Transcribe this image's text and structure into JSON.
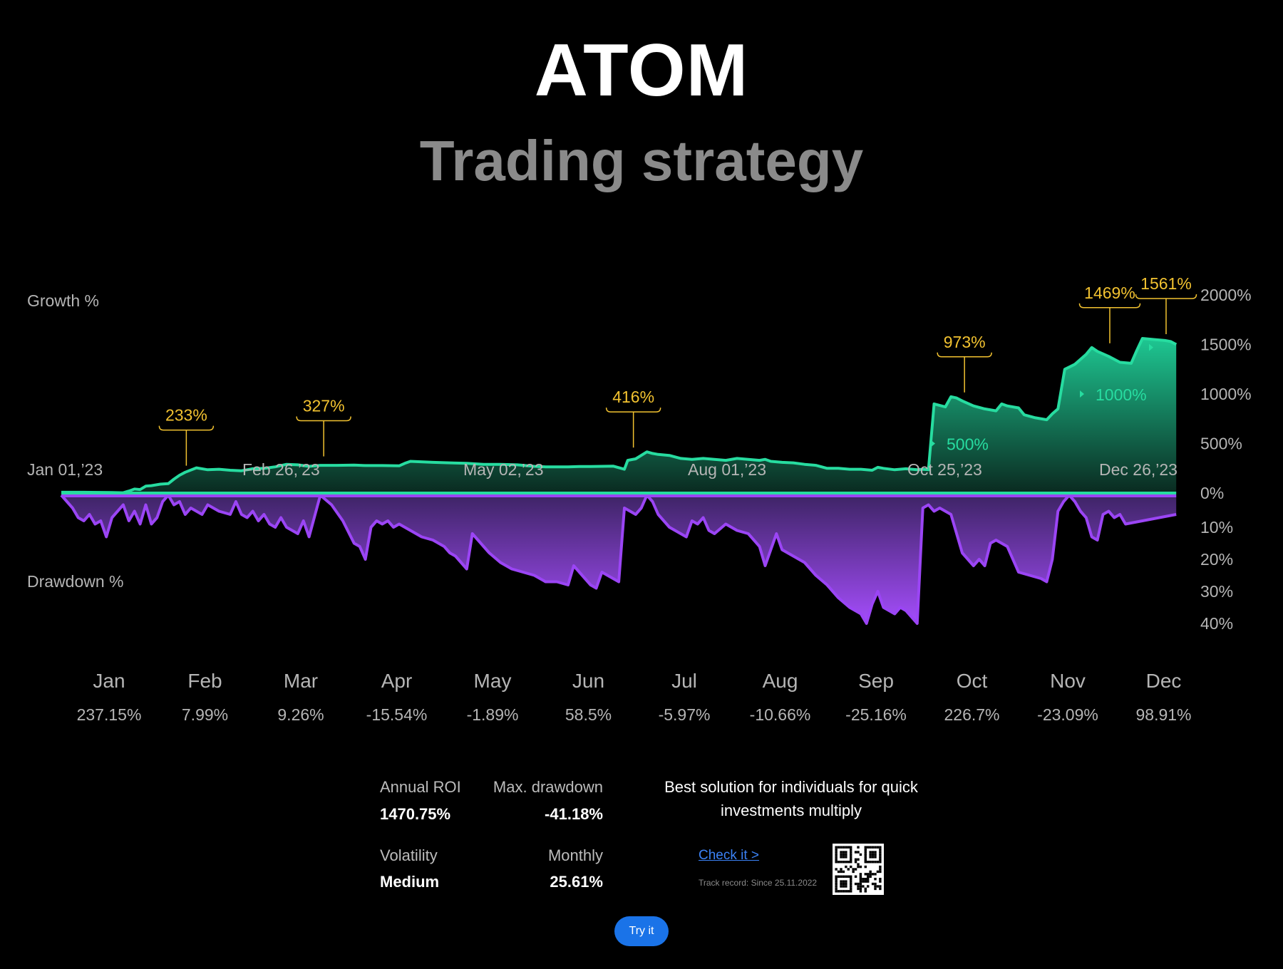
{
  "header": {
    "title": "ATOM",
    "subtitle": "Trading strategy"
  },
  "chart_data": {
    "type": "area",
    "growth_label": "Growth %",
    "drawdown_label": "Drawdown %",
    "growth_axis": {
      "ticks": [
        "2000%",
        "1500%",
        "1000%",
        "500%",
        "0%"
      ],
      "values": [
        2000,
        1500,
        1000,
        500,
        0
      ],
      "ylim": [
        0,
        2000
      ]
    },
    "drawdown_axis": {
      "ticks": [
        "10%",
        "20%",
        "30%",
        "40%"
      ],
      "values": [
        10,
        20,
        30,
        40
      ]
    },
    "date_labels": [
      "Jan 01,’23",
      "Feb 26,’23",
      "May 02,’23",
      "Aug 01,’23",
      "Oct 25,’23",
      "Dec 26,’23"
    ],
    "inline_labels": [
      {
        "text": "500%",
        "value": 500
      },
      {
        "text": "1000%",
        "value": 1000
      }
    ],
    "annotations": [
      {
        "text": "233%",
        "t": 0.111,
        "value": 233
      },
      {
        "text": "327%",
        "t": 0.233,
        "value": 327
      },
      {
        "text": "416%",
        "t": 0.508,
        "value": 416
      },
      {
        "text": "973%",
        "t": 0.802,
        "value": 973
      },
      {
        "text": "1469%",
        "t": 0.931,
        "value": 1469
      },
      {
        "text": "1561%",
        "t": 0.981,
        "value": 1561
      }
    ],
    "growth_series": [
      [
        0,
        8
      ],
      [
        0.02,
        8
      ],
      [
        0.045,
        5
      ],
      [
        0.055,
        3
      ],
      [
        0.06,
        20
      ],
      [
        0.065,
        40
      ],
      [
        0.07,
        35
      ],
      [
        0.075,
        70
      ],
      [
        0.08,
        75
      ],
      [
        0.088,
        90
      ],
      [
        0.095,
        95
      ],
      [
        0.1,
        140
      ],
      [
        0.105,
        180
      ],
      [
        0.11,
        210
      ],
      [
        0.12,
        255
      ],
      [
        0.13,
        235
      ],
      [
        0.14,
        240
      ],
      [
        0.15,
        230
      ],
      [
        0.16,
        225
      ],
      [
        0.17,
        245
      ],
      [
        0.18,
        250
      ],
      [
        0.19,
        265
      ],
      [
        0.2,
        290
      ],
      [
        0.21,
        285
      ],
      [
        0.22,
        270
      ],
      [
        0.23,
        280
      ],
      [
        0.245,
        280
      ],
      [
        0.26,
        282
      ],
      [
        0.27,
        278
      ],
      [
        0.285,
        278
      ],
      [
        0.3,
        275
      ],
      [
        0.305,
        300
      ],
      [
        0.31,
        320
      ],
      [
        0.33,
        310
      ],
      [
        0.345,
        305
      ],
      [
        0.36,
        300
      ],
      [
        0.375,
        290
      ],
      [
        0.39,
        290
      ],
      [
        0.405,
        285
      ],
      [
        0.42,
        270
      ],
      [
        0.43,
        265
      ],
      [
        0.44,
        265
      ],
      [
        0.45,
        265
      ],
      [
        0.46,
        268
      ],
      [
        0.47,
        268
      ],
      [
        0.48,
        270
      ],
      [
        0.49,
        272
      ],
      [
        0.5,
        240
      ],
      [
        0.503,
        330
      ],
      [
        0.51,
        345
      ],
      [
        0.52,
        416
      ],
      [
        0.525,
        400
      ],
      [
        0.53,
        390
      ],
      [
        0.54,
        380
      ],
      [
        0.55,
        350
      ],
      [
        0.56,
        340
      ],
      [
        0.57,
        350
      ],
      [
        0.58,
        340
      ],
      [
        0.59,
        330
      ],
      [
        0.6,
        350
      ],
      [
        0.61,
        340
      ],
      [
        0.62,
        330
      ],
      [
        0.625,
        340
      ],
      [
        0.63,
        320
      ],
      [
        0.64,
        310
      ],
      [
        0.65,
        305
      ],
      [
        0.66,
        290
      ],
      [
        0.67,
        280
      ],
      [
        0.68,
        250
      ],
      [
        0.69,
        250
      ],
      [
        0.7,
        240
      ],
      [
        0.71,
        240
      ],
      [
        0.72,
        230
      ],
      [
        0.725,
        260
      ],
      [
        0.73,
        250
      ],
      [
        0.74,
        235
      ],
      [
        0.75,
        245
      ],
      [
        0.76,
        235
      ],
      [
        0.765,
        240
      ],
      [
        0.77,
        235
      ],
      [
        0.775,
        900
      ],
      [
        0.785,
        870
      ],
      [
        0.79,
        973
      ],
      [
        0.795,
        960
      ],
      [
        0.8,
        930
      ],
      [
        0.81,
        880
      ],
      [
        0.82,
        850
      ],
      [
        0.83,
        830
      ],
      [
        0.835,
        900
      ],
      [
        0.84,
        880
      ],
      [
        0.85,
        860
      ],
      [
        0.855,
        790
      ],
      [
        0.865,
        760
      ],
      [
        0.875,
        740
      ],
      [
        0.88,
        800
      ],
      [
        0.885,
        850
      ],
      [
        0.891,
        1250
      ],
      [
        0.9,
        1300
      ],
      [
        0.91,
        1400
      ],
      [
        0.915,
        1469
      ],
      [
        0.92,
        1430
      ],
      [
        0.93,
        1380
      ],
      [
        0.94,
        1320
      ],
      [
        0.95,
        1310
      ],
      [
        0.955,
        1440
      ],
      [
        0.96,
        1561
      ],
      [
        0.97,
        1550
      ],
      [
        0.98,
        1540
      ],
      [
        0.985,
        1530
      ],
      [
        0.99,
        1500
      ]
    ],
    "drawdown_series": [
      [
        0,
        0
      ],
      [
        0.005,
        2
      ],
      [
        0.01,
        4
      ],
      [
        0.015,
        7
      ],
      [
        0.02,
        8
      ],
      [
        0.025,
        6
      ],
      [
        0.03,
        9
      ],
      [
        0.035,
        8
      ],
      [
        0.04,
        13
      ],
      [
        0.045,
        7
      ],
      [
        0.05,
        5
      ],
      [
        0.055,
        3
      ],
      [
        0.06,
        8
      ],
      [
        0.065,
        5
      ],
      [
        0.07,
        9
      ],
      [
        0.075,
        3
      ],
      [
        0.08,
        9
      ],
      [
        0.085,
        7
      ],
      [
        0.09,
        2
      ],
      [
        0.095,
        0
      ],
      [
        0.1,
        3
      ],
      [
        0.105,
        2
      ],
      [
        0.11,
        6
      ],
      [
        0.115,
        4
      ],
      [
        0.12,
        5
      ],
      [
        0.125,
        6
      ],
      [
        0.13,
        3
      ],
      [
        0.14,
        5
      ],
      [
        0.15,
        6
      ],
      [
        0.155,
        2
      ],
      [
        0.16,
        6
      ],
      [
        0.165,
        7
      ],
      [
        0.17,
        5
      ],
      [
        0.175,
        8
      ],
      [
        0.18,
        6
      ],
      [
        0.185,
        9
      ],
      [
        0.19,
        10
      ],
      [
        0.195,
        7
      ],
      [
        0.2,
        10
      ],
      [
        0.205,
        11
      ],
      [
        0.21,
        12
      ],
      [
        0.215,
        8
      ],
      [
        0.22,
        13
      ],
      [
        0.23,
        0
      ],
      [
        0.24,
        3
      ],
      [
        0.25,
        8
      ],
      [
        0.26,
        15
      ],
      [
        0.265,
        16
      ],
      [
        0.27,
        20
      ],
      [
        0.275,
        10
      ],
      [
        0.28,
        8
      ],
      [
        0.285,
        9
      ],
      [
        0.29,
        8
      ],
      [
        0.295,
        10
      ],
      [
        0.3,
        9
      ],
      [
        0.31,
        11
      ],
      [
        0.32,
        13
      ],
      [
        0.33,
        14
      ],
      [
        0.34,
        16
      ],
      [
        0.345,
        18
      ],
      [
        0.35,
        19
      ],
      [
        0.355,
        21
      ],
      [
        0.36,
        23
      ],
      [
        0.365,
        12
      ],
      [
        0.37,
        14
      ],
      [
        0.375,
        16
      ],
      [
        0.38,
        18
      ],
      [
        0.39,
        21
      ],
      [
        0.4,
        23
      ],
      [
        0.41,
        24
      ],
      [
        0.42,
        25
      ],
      [
        0.43,
        27
      ],
      [
        0.44,
        27
      ],
      [
        0.45,
        28
      ],
      [
        0.455,
        22
      ],
      [
        0.46,
        24
      ],
      [
        0.465,
        26
      ],
      [
        0.47,
        28
      ],
      [
        0.475,
        29
      ],
      [
        0.48,
        24
      ],
      [
        0.49,
        26
      ],
      [
        0.495,
        27
      ],
      [
        0.5,
        4
      ],
      [
        0.51,
        6
      ],
      [
        0.515,
        4
      ],
      [
        0.52,
        0
      ],
      [
        0.525,
        2
      ],
      [
        0.53,
        6
      ],
      [
        0.54,
        10
      ],
      [
        0.55,
        12
      ],
      [
        0.555,
        13
      ],
      [
        0.56,
        8
      ],
      [
        0.565,
        9
      ],
      [
        0.57,
        7
      ],
      [
        0.575,
        11
      ],
      [
        0.58,
        12
      ],
      [
        0.59,
        9
      ],
      [
        0.6,
        11
      ],
      [
        0.61,
        12
      ],
      [
        0.62,
        16
      ],
      [
        0.625,
        22
      ],
      [
        0.63,
        17
      ],
      [
        0.635,
        12
      ],
      [
        0.64,
        17
      ],
      [
        0.65,
        19
      ],
      [
        0.66,
        21
      ],
      [
        0.67,
        25
      ],
      [
        0.68,
        28
      ],
      [
        0.69,
        32
      ],
      [
        0.7,
        35
      ],
      [
        0.71,
        37
      ],
      [
        0.715,
        40
      ],
      [
        0.72,
        34
      ],
      [
        0.725,
        30
      ],
      [
        0.73,
        35
      ],
      [
        0.74,
        37
      ],
      [
        0.745,
        35
      ],
      [
        0.75,
        36
      ],
      [
        0.76,
        40
      ],
      [
        0.765,
        4
      ],
      [
        0.77,
        3
      ],
      [
        0.775,
        5
      ],
      [
        0.78,
        4
      ],
      [
        0.79,
        6
      ],
      [
        0.8,
        18
      ],
      [
        0.81,
        22
      ],
      [
        0.815,
        20
      ],
      [
        0.82,
        22
      ],
      [
        0.825,
        15
      ],
      [
        0.83,
        14
      ],
      [
        0.84,
        16
      ],
      [
        0.845,
        20
      ],
      [
        0.85,
        24
      ],
      [
        0.86,
        25
      ],
      [
        0.87,
        26
      ],
      [
        0.875,
        27
      ],
      [
        0.88,
        20
      ],
      [
        0.885,
        5
      ],
      [
        0.89,
        2
      ],
      [
        0.895,
        0
      ],
      [
        0.9,
        2
      ],
      [
        0.905,
        5
      ],
      [
        0.91,
        7
      ],
      [
        0.915,
        13
      ],
      [
        0.92,
        14
      ],
      [
        0.925,
        6
      ],
      [
        0.93,
        5
      ],
      [
        0.935,
        7
      ],
      [
        0.94,
        6
      ],
      [
        0.945,
        9
      ],
      [
        0.99,
        6
      ]
    ],
    "months": [
      "Jan",
      "Feb",
      "Mar",
      "Apr",
      "May",
      "Jun",
      "Jul",
      "Aug",
      "Sep",
      "Oct",
      "Nov",
      "Dec"
    ],
    "monthly_returns": [
      "237.15%",
      "7.99%",
      "9.26%",
      "-15.54%",
      "-1.89%",
      "58.5%",
      "-5.97%",
      "-10.66%",
      "-25.16%",
      "226.7%",
      "-23.09%",
      "98.91%"
    ]
  },
  "stats": {
    "annual_roi_label": "Annual ROI",
    "annual_roi_value": "1470.75%",
    "max_drawdown_label": "Max. drawdown",
    "max_drawdown_value": "-41.18%",
    "volatility_label": "Volatility",
    "volatility_value": "Medium",
    "monthly_label": "Monthly",
    "monthly_value": "25.61%"
  },
  "promo": {
    "text": "Best solution for individuals for quick investments multiply",
    "link_label": "Check it >",
    "track_record": "Track record: Since 25.11.2022",
    "button_label": "Try it"
  },
  "colors": {
    "growth_line": "#27dca0",
    "growth_fill_top": "#1ec792",
    "growth_fill_bottom": "#0a2a20",
    "drawdown_line": "#9b45f5",
    "drawdown_fill_top": "#5a2f8a",
    "drawdown_fill_bottom": "#a44dfb",
    "annotation": "#f2c230",
    "axis_text": "#b5b5b5",
    "background": "#000000"
  }
}
